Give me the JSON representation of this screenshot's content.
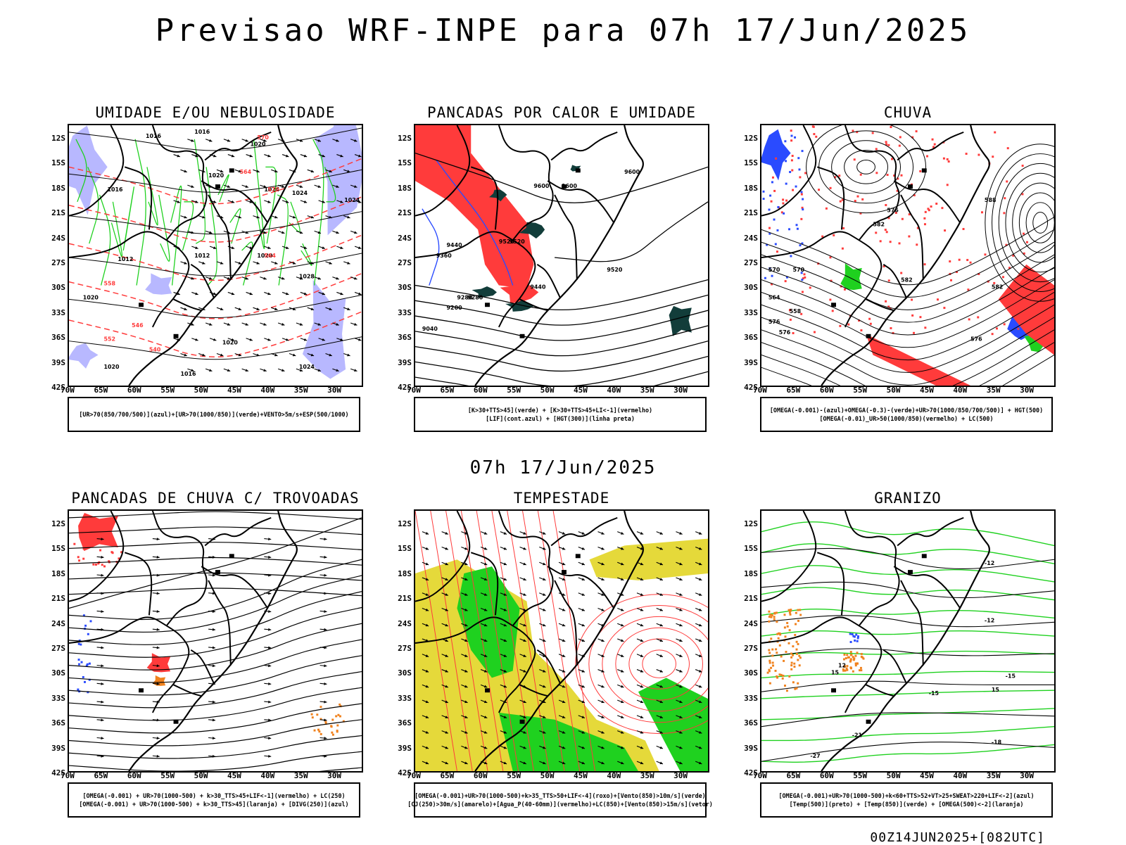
{
  "header": {
    "title": "Previsao WRF-INPE  para 07h 17/Jun/2025"
  },
  "middle": {
    "subtitle": "07h 17/Jun/2025"
  },
  "footer": {
    "run_label": "00Z14JUN2025+[082UTC]"
  },
  "axes": {
    "lat_labels": [
      "12S",
      "15S",
      "18S",
      "21S",
      "24S",
      "27S",
      "30S",
      "33S",
      "36S",
      "39S",
      "42S"
    ],
    "lon_labels": [
      "70W",
      "65W",
      "60W",
      "55W",
      "50W",
      "45W",
      "40W",
      "35W",
      "30W"
    ]
  },
  "colors": {
    "red": "#ff3b3b",
    "green": "#1fd11f",
    "blue": "#2a4bff",
    "lavender": "#b8b8ff",
    "yellow": "#e5d93a",
    "dark": "#123d3a",
    "orange": "#f0821e"
  },
  "panels": [
    {
      "id": "umidade",
      "title": "UMIDADE E/OU NEBULOSIDADE",
      "legend": [
        "[UR>70(850/700/500)](azul)+[UR>70(1000/850)](verde)+VENTO>5m/s+ESP(500/1000)"
      ],
      "contour_labels": [
        "1016",
        "1016",
        "1020",
        "1020",
        "1020",
        "1024",
        "1024",
        "1024",
        "1012",
        "1012",
        "1016",
        "1020",
        "1016",
        "1028",
        "1020",
        "1020",
        "1024",
        "570",
        "564",
        "558",
        "552",
        "546",
        "540",
        "570",
        "564"
      ]
    },
    {
      "id": "pancadas-calor",
      "title": "PANCADAS POR CALOR E UMIDADE",
      "legend": [
        "[K>30+TTS>45](verde) + [K>30+TTS>45+LI<-1](vermelho)",
        "[LIF](cont.azul) + [HGT(300)](linha preta)"
      ],
      "contour_labels": [
        "9600",
        "9600",
        "9520",
        "9600",
        "9520",
        "9440",
        "9360",
        "9280",
        "9520",
        "9440",
        "9280",
        "9200",
        "9040"
      ]
    },
    {
      "id": "chuva",
      "title": "CHUVA",
      "legend": [
        "[OMEGA(-0.001)-(azul)+OMEGA(-0.3)-(verde)+UR>70(1000/850/700/500)] + HGT(500)",
        "[OMEGA(-0.01)_UR>50(1000/850)(vermelho) + LC(500)"
      ],
      "contour_labels": [
        "582",
        "576",
        "570",
        "588",
        "582",
        "576",
        "564",
        "558",
        "582",
        "576",
        "570",
        "576"
      ]
    },
    {
      "id": "pancadas-trovoadas",
      "title": "PANCADAS DE CHUVA C/ TROVOADAS",
      "legend": [
        "[OMEGA(-0.001) + UR>70(1000-500) + k>30_TTS>45+LIF<-1](vermelho) + LC(250)",
        "[OMEGA(-0.001) + UR>70(1000-500) + k>30_TTS>45](laranja) + [DIVG(250)](azul)"
      ],
      "contour_labels": []
    },
    {
      "id": "tempestade",
      "title": "TEMPESTADE",
      "legend": [
        "[OMEGA(-0.001)+UR>70(1000-500)+k>35_TTS>50+LIF<-4](roxo)+[Vento(850)>10m/s](verde)",
        "[CJ(250)>30m/s](amarelo)+[Agua_P(40-60mm)](vermelho)+LC(850)+[Vento(850)>15m/s](vetor)"
      ],
      "contour_labels": []
    },
    {
      "id": "granizo",
      "title": "GRANIZO",
      "legend": [
        "[OMEGA(-0.001)+UR>70(1000-500)+k<60+TTS>52+VT>25+SWEAT>220+LIF<-2](azul)",
        "[Temp(500)](preto) + [Temp(850)](verde) + [OMEGA(500)<-2](laranja)"
      ],
      "contour_labels": [
        "-12",
        "-12",
        "-15",
        "-15",
        "-18",
        "-21",
        "-27",
        "12",
        "15",
        "15"
      ]
    }
  ]
}
